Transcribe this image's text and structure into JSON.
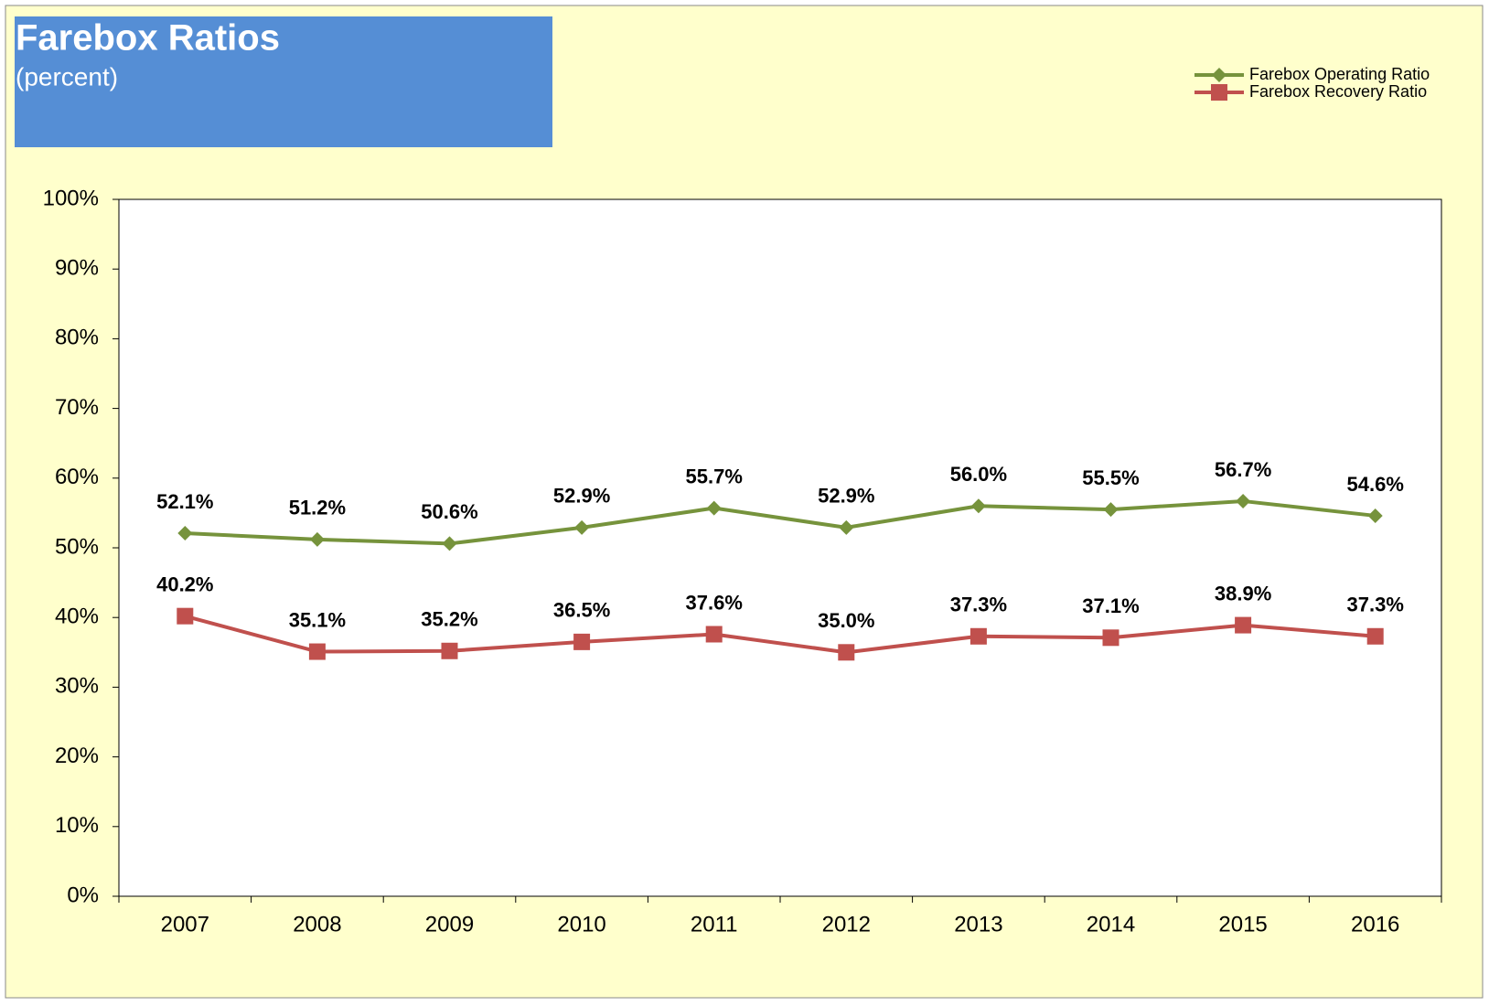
{
  "chart_data": {
    "type": "line",
    "title": "Farebox Ratios",
    "subtitle": "(percent)",
    "categories": [
      "2007",
      "2008",
      "2009",
      "2010",
      "2011",
      "2012",
      "2013",
      "2014",
      "2015",
      "2016"
    ],
    "series": [
      {
        "name": "Farebox Operating Ratio",
        "color": "#76933c",
        "marker": "diamond",
        "values": [
          52.1,
          51.2,
          50.6,
          52.9,
          55.7,
          52.9,
          56.0,
          55.5,
          56.7,
          54.6
        ],
        "value_labels": [
          "52.1%",
          "51.2%",
          "50.6%",
          "52.9%",
          "55.7%",
          "52.9%",
          "56.0%",
          "55.5%",
          "56.7%",
          "54.6%"
        ]
      },
      {
        "name": "Farebox Recovery Ratio",
        "color": "#c0504d",
        "marker": "square",
        "values": [
          40.2,
          35.1,
          35.2,
          36.5,
          37.6,
          35.0,
          37.3,
          37.1,
          38.9,
          37.3
        ],
        "value_labels": [
          "40.2%",
          "35.1%",
          "35.2%",
          "36.5%",
          "37.6%",
          "35.0%",
          "37.3%",
          "37.1%",
          "38.9%",
          "37.3%"
        ]
      }
    ],
    "ylim": [
      0,
      100
    ],
    "yticks": [
      {
        "value": 0,
        "label": "0%"
      },
      {
        "value": 10,
        "label": "10%"
      },
      {
        "value": 20,
        "label": "20%"
      },
      {
        "value": 30,
        "label": "30%"
      },
      {
        "value": 40,
        "label": "40%"
      },
      {
        "value": 50,
        "label": "50%"
      },
      {
        "value": 60,
        "label": "60%"
      },
      {
        "value": 70,
        "label": "70%"
      },
      {
        "value": 80,
        "label": "80%"
      },
      {
        "value": 90,
        "label": "90%"
      },
      {
        "value": 100,
        "label": "100%"
      }
    ]
  }
}
